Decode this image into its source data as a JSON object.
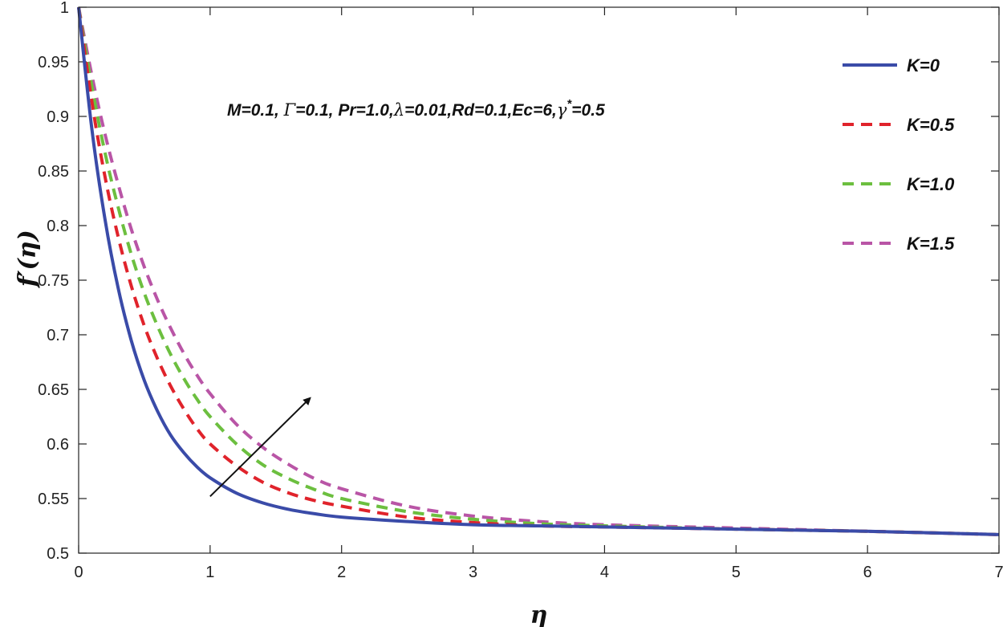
{
  "chart_data": {
    "type": "line",
    "xlabel": "η",
    "ylabel": "f′(η)",
    "xlim": [
      0,
      7
    ],
    "ylim": [
      0.5,
      1
    ],
    "xticks": [
      "0",
      "1",
      "2",
      "3",
      "4",
      "5",
      "6",
      "7"
    ],
    "yticks": [
      "0.5",
      "0.55",
      "0.6",
      "0.65",
      "0.7",
      "0.75",
      "0.8",
      "0.85",
      "0.9",
      "0.95",
      "1"
    ],
    "grid": false,
    "legend_position": "top-right",
    "annotation": {
      "parts": [
        {
          "t": "M=0.1, "
        },
        {
          "t": "Γ",
          "serif": true
        },
        {
          "t": "=0.1, Pr=1.0,"
        },
        {
          "t": "λ",
          "serif": true
        },
        {
          "t": "=0.01,Rd=0.1,Ec=6,"
        },
        {
          "t": "γ",
          "serif": true
        },
        {
          "t": "*",
          "sup": true
        },
        {
          "t": "=0.5"
        }
      ]
    },
    "arrow": {
      "from": [
        1.0,
        0.552
      ],
      "to": [
        1.76,
        0.642
      ]
    },
    "series": [
      {
        "name": "K=0",
        "color": "#3a4ba8",
        "dash": "solid",
        "x": [
          0,
          0.1,
          0.2,
          0.3,
          0.4,
          0.5,
          0.6,
          0.7,
          0.8,
          0.9,
          1.0,
          1.2,
          1.4,
          1.6,
          1.8,
          2.0,
          2.5,
          3.0,
          3.5,
          4.0,
          5.0,
          6.0,
          7.0
        ],
        "y": [
          1.0,
          0.889,
          0.806,
          0.743,
          0.695,
          0.658,
          0.63,
          0.608,
          0.592,
          0.579,
          0.569,
          0.555,
          0.546,
          0.54,
          0.536,
          0.533,
          0.529,
          0.526,
          0.525,
          0.524,
          0.522,
          0.52,
          0.517
        ]
      },
      {
        "name": "K=0.5",
        "color": "#e0232b",
        "dash": "dashed",
        "x": [
          0,
          0.1,
          0.2,
          0.3,
          0.4,
          0.5,
          0.6,
          0.7,
          0.8,
          0.9,
          1.0,
          1.2,
          1.4,
          1.6,
          1.8,
          2.0,
          2.5,
          3.0,
          3.5,
          4.0,
          5.0,
          6.0,
          7.0
        ],
        "y": [
          1.0,
          0.914,
          0.845,
          0.79,
          0.745,
          0.708,
          0.678,
          0.653,
          0.632,
          0.614,
          0.6,
          0.58,
          0.565,
          0.555,
          0.548,
          0.543,
          0.533,
          0.528,
          0.525,
          0.524,
          0.522,
          0.52,
          0.517
        ]
      },
      {
        "name": "K=1.0",
        "color": "#6cbf3f",
        "dash": "dashed",
        "x": [
          0,
          0.1,
          0.2,
          0.3,
          0.4,
          0.5,
          0.6,
          0.7,
          0.8,
          0.9,
          1.0,
          1.2,
          1.4,
          1.6,
          1.8,
          2.0,
          2.5,
          3.0,
          3.5,
          4.0,
          5.0,
          6.0,
          7.0
        ],
        "y": [
          1.0,
          0.928,
          0.867,
          0.817,
          0.774,
          0.738,
          0.708,
          0.682,
          0.66,
          0.641,
          0.625,
          0.6,
          0.581,
          0.568,
          0.558,
          0.55,
          0.538,
          0.531,
          0.527,
          0.525,
          0.522,
          0.52,
          0.517
        ]
      },
      {
        "name": "K=1.5",
        "color": "#b955a6",
        "dash": "dashed",
        "x": [
          0,
          0.1,
          0.2,
          0.3,
          0.4,
          0.5,
          0.6,
          0.7,
          0.8,
          0.9,
          1.0,
          1.2,
          1.4,
          1.6,
          1.8,
          2.0,
          2.5,
          3.0,
          3.5,
          4.0,
          5.0,
          6.0,
          7.0
        ],
        "y": [
          1.0,
          0.938,
          0.884,
          0.838,
          0.797,
          0.762,
          0.732,
          0.706,
          0.683,
          0.663,
          0.646,
          0.618,
          0.597,
          0.581,
          0.568,
          0.559,
          0.543,
          0.534,
          0.529,
          0.526,
          0.523,
          0.52,
          0.517
        ]
      }
    ]
  }
}
